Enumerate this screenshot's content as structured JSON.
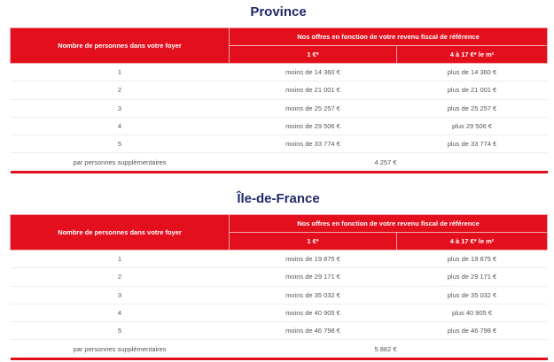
{
  "accent_color": "#e30f1d",
  "title_color": "#1f2a6b",
  "sections": [
    {
      "title": "Province",
      "header": {
        "col_household": "Nombre de personnes dans votre foyer",
        "col_offers": "Nos offres en fonction de votre revenu fiscal de référence",
        "col_offer_1": "1 €*",
        "col_offer_2": "4 à 17 €* le m²"
      },
      "rows": [
        {
          "persons": "1",
          "offer_1": "moins de 14 360 €",
          "offer_2": "plus de 14 360 €"
        },
        {
          "persons": "2",
          "offer_1": "moins de 21 001 €",
          "offer_2": "plus de 21 001 €"
        },
        {
          "persons": "3",
          "offer_1": "moins de 25 257 €",
          "offer_2": "plus de 25 257 €"
        },
        {
          "persons": "4",
          "offer_1": "moins de 29 506 €",
          "offer_2": "plus 29 506 €"
        },
        {
          "persons": "5",
          "offer_1": "moins de 33 774 €",
          "offer_2": "plus de 33 774 €"
        }
      ],
      "extra": {
        "label": "par personnes supplémentaires",
        "value": "4 257 €"
      }
    },
    {
      "title": "Île-de-France",
      "header": {
        "col_household": "Nombre de personnes dans votre foyer",
        "col_offers": "Nos offres en fonction de votre revenu fiscal de référence",
        "col_offer_1": "1 €*",
        "col_offer_2": "4 à 17 €* le m²"
      },
      "rows": [
        {
          "persons": "1",
          "offer_1": "moins de 19 875 €",
          "offer_2": "plus de 19 875 €"
        },
        {
          "persons": "2",
          "offer_1": "moins de 29 171 €",
          "offer_2": "plus de 29 171 €"
        },
        {
          "persons": "3",
          "offer_1": "moins de 35 032 €",
          "offer_2": "plus de 35 032 €"
        },
        {
          "persons": "4",
          "offer_1": "moins de 40 905 €",
          "offer_2": "plus 40 905 €"
        },
        {
          "persons": "5",
          "offer_1": "moins de 46 798 €",
          "offer_2": "plus de 46 798 €"
        }
      ],
      "extra": {
        "label": "par personnes supplémentaires",
        "value": "5 882 €"
      }
    }
  ]
}
